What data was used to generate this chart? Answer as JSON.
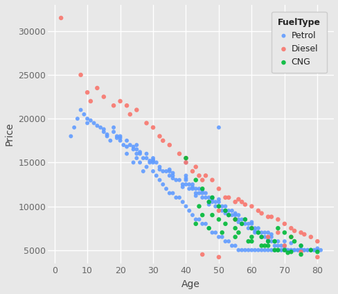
{
  "xlabel": "Age",
  "ylabel": "Price",
  "legend_title": "FuelType",
  "xlim": [
    -2,
    85
  ],
  "ylim": [
    3500,
    33000
  ],
  "xticks": [
    0,
    10,
    20,
    30,
    40,
    50,
    60,
    70,
    80
  ],
  "yticks": [
    5000,
    10000,
    15000,
    20000,
    25000,
    30000
  ],
  "background_color": "#E8E8E8",
  "grid_color": "#ffffff",
  "colors": {
    "Diesel": "#F8766D",
    "Petrol": "#619CFF",
    "CNG": "#00BA38"
  },
  "diesel_points": [
    [
      2,
      31500
    ],
    [
      8,
      25000
    ],
    [
      10,
      23000
    ],
    [
      11,
      22000
    ],
    [
      13,
      23500
    ],
    [
      15,
      22500
    ],
    [
      18,
      21500
    ],
    [
      20,
      22000
    ],
    [
      22,
      21500
    ],
    [
      23,
      20500
    ],
    [
      25,
      21000
    ],
    [
      28,
      19500
    ],
    [
      30,
      19000
    ],
    [
      32,
      18000
    ],
    [
      33,
      17500
    ],
    [
      35,
      17000
    ],
    [
      38,
      16000
    ],
    [
      40,
      15000
    ],
    [
      43,
      14500
    ],
    [
      44,
      13500
    ],
    [
      45,
      13000
    ],
    [
      46,
      13500
    ],
    [
      48,
      13000
    ],
    [
      50,
      12000
    ],
    [
      52,
      11000
    ],
    [
      53,
      11000
    ],
    [
      55,
      10500
    ],
    [
      56,
      10800
    ],
    [
      57,
      10500
    ],
    [
      58,
      10200
    ],
    [
      60,
      10000
    ],
    [
      62,
      9500
    ],
    [
      63,
      9200
    ],
    [
      65,
      8800
    ],
    [
      66,
      8800
    ],
    [
      68,
      8500
    ],
    [
      70,
      8000
    ],
    [
      72,
      7500
    ],
    [
      73,
      7200
    ],
    [
      75,
      7000
    ],
    [
      76,
      6800
    ],
    [
      78,
      6500
    ],
    [
      80,
      6000
    ],
    [
      40,
      15500
    ],
    [
      42,
      14000
    ],
    [
      50,
      9500
    ],
    [
      55,
      8500
    ],
    [
      60,
      7500
    ],
    [
      65,
      6500
    ],
    [
      70,
      5500
    ],
    [
      75,
      4800
    ],
    [
      80,
      4200
    ],
    [
      45,
      4500
    ],
    [
      50,
      4200
    ],
    [
      68,
      7000
    ],
    [
      72,
      6500
    ]
  ],
  "petrol_points": [
    [
      5,
      18000
    ],
    [
      6,
      19000
    ],
    [
      7,
      20000
    ],
    [
      8,
      21000
    ],
    [
      9,
      20500
    ],
    [
      10,
      20000
    ],
    [
      10,
      19500
    ],
    [
      11,
      19800
    ],
    [
      12,
      19500
    ],
    [
      13,
      19200
    ],
    [
      14,
      19000
    ],
    [
      15,
      18800
    ],
    [
      15,
      18500
    ],
    [
      16,
      18200
    ],
    [
      16,
      18000
    ],
    [
      17,
      17500
    ],
    [
      18,
      19000
    ],
    [
      18,
      18500
    ],
    [
      19,
      18000
    ],
    [
      19,
      17800
    ],
    [
      20,
      17800
    ],
    [
      20,
      17500
    ],
    [
      20,
      18000
    ],
    [
      21,
      17000
    ],
    [
      22,
      17500
    ],
    [
      22,
      16800
    ],
    [
      23,
      17000
    ],
    [
      24,
      16800
    ],
    [
      24,
      16500
    ],
    [
      25,
      16500
    ],
    [
      25,
      16000
    ],
    [
      25,
      17000
    ],
    [
      26,
      16200
    ],
    [
      26,
      16000
    ],
    [
      27,
      15500
    ],
    [
      28,
      15500
    ],
    [
      28,
      16000
    ],
    [
      29,
      15200
    ],
    [
      29,
      15000
    ],
    [
      30,
      15300
    ],
    [
      30,
      15200
    ],
    [
      30,
      15500
    ],
    [
      30,
      15000
    ],
    [
      31,
      15000
    ],
    [
      32,
      14500
    ],
    [
      32,
      14200
    ],
    [
      33,
      14000
    ],
    [
      34,
      14000
    ],
    [
      35,
      14200
    ],
    [
      35,
      13500
    ],
    [
      35,
      14000
    ],
    [
      36,
      13800
    ],
    [
      36,
      13500
    ],
    [
      36,
      13200
    ],
    [
      37,
      13000
    ],
    [
      38,
      13000
    ],
    [
      39,
      12500
    ],
    [
      39,
      12200
    ],
    [
      40,
      13200
    ],
    [
      40,
      12500
    ],
    [
      40,
      13000
    ],
    [
      40,
      13500
    ],
    [
      40,
      15000
    ],
    [
      41,
      12000
    ],
    [
      41,
      12500
    ],
    [
      42,
      12200
    ],
    [
      42,
      12000
    ],
    [
      42,
      12500
    ],
    [
      43,
      12000
    ],
    [
      43,
      11500
    ],
    [
      43,
      11200
    ],
    [
      44,
      11500
    ],
    [
      44,
      12000
    ],
    [
      45,
      11800
    ],
    [
      45,
      11000
    ],
    [
      45,
      11500
    ],
    [
      46,
      11000
    ],
    [
      46,
      11500
    ],
    [
      47,
      10200
    ],
    [
      47,
      10500
    ],
    [
      47,
      11000
    ],
    [
      48,
      10800
    ],
    [
      48,
      10500
    ],
    [
      48,
      11000
    ],
    [
      49,
      10000
    ],
    [
      49,
      10500
    ],
    [
      50,
      10800
    ],
    [
      50,
      10000
    ],
    [
      50,
      10500
    ],
    [
      50,
      19000
    ],
    [
      51,
      9500
    ],
    [
      51,
      10000
    ],
    [
      52,
      9500
    ],
    [
      52,
      9200
    ],
    [
      52,
      10000
    ],
    [
      53,
      9500
    ],
    [
      53,
      9000
    ],
    [
      54,
      9500
    ],
    [
      54,
      9000
    ],
    [
      55,
      9200
    ],
    [
      55,
      8500
    ],
    [
      55,
      9000
    ],
    [
      56,
      8500
    ],
    [
      56,
      8200
    ],
    [
      56,
      9000
    ],
    [
      57,
      8000
    ],
    [
      57,
      8500
    ],
    [
      58,
      8000
    ],
    [
      58,
      8500
    ],
    [
      59,
      8000
    ],
    [
      59,
      7500
    ],
    [
      60,
      8200
    ],
    [
      60,
      7500
    ],
    [
      60,
      8000
    ],
    [
      61,
      7200
    ],
    [
      61,
      7000
    ],
    [
      61,
      7500
    ],
    [
      62,
      7000
    ],
    [
      62,
      7500
    ],
    [
      63,
      6500
    ],
    [
      63,
      7000
    ],
    [
      64,
      6500
    ],
    [
      64,
      7000
    ],
    [
      65,
      7000
    ],
    [
      65,
      6200
    ],
    [
      65,
      6000
    ],
    [
      65,
      6500
    ],
    [
      66,
      6000
    ],
    [
      66,
      6500
    ],
    [
      66,
      6800
    ],
    [
      67,
      5500
    ],
    [
      67,
      6000
    ],
    [
      68,
      5500
    ],
    [
      68,
      6000
    ],
    [
      69,
      5000
    ],
    [
      69,
      5500
    ],
    [
      70,
      6000
    ],
    [
      70,
      5200
    ],
    [
      70,
      5000
    ],
    [
      70,
      5500
    ],
    [
      71,
      5000
    ],
    [
      72,
      5800
    ],
    [
      72,
      5000
    ],
    [
      73,
      5000
    ],
    [
      74,
      5000
    ],
    [
      75,
      5500
    ],
    [
      75,
      5100
    ],
    [
      75,
      5000
    ],
    [
      76,
      5000
    ],
    [
      77,
      5000
    ],
    [
      78,
      5000
    ],
    [
      79,
      5000
    ],
    [
      80,
      5200
    ],
    [
      80,
      5000
    ],
    [
      81,
      5000
    ],
    [
      40,
      10000
    ],
    [
      41,
      9500
    ],
    [
      42,
      9000
    ],
    [
      43,
      8500
    ],
    [
      44,
      8500
    ],
    [
      45,
      8000
    ],
    [
      46,
      8000
    ],
    [
      47,
      7500
    ],
    [
      48,
      7000
    ],
    [
      49,
      7000
    ],
    [
      50,
      6500
    ],
    [
      51,
      6500
    ],
    [
      52,
      6000
    ],
    [
      53,
      6000
    ],
    [
      54,
      5500
    ],
    [
      55,
      5500
    ],
    [
      56,
      5000
    ],
    [
      57,
      5000
    ],
    [
      58,
      5000
    ],
    [
      59,
      5000
    ],
    [
      60,
      5000
    ],
    [
      61,
      5000
    ],
    [
      62,
      5000
    ],
    [
      63,
      5000
    ],
    [
      64,
      5000
    ],
    [
      65,
      5000
    ],
    [
      66,
      5000
    ],
    [
      67,
      5000
    ],
    [
      68,
      5000
    ],
    [
      69,
      5000
    ],
    [
      70,
      5000
    ],
    [
      71,
      5000
    ],
    [
      72,
      5000
    ],
    [
      73,
      5000
    ],
    [
      74,
      5000
    ],
    [
      75,
      5000
    ],
    [
      76,
      5000
    ],
    [
      77,
      5000
    ],
    [
      78,
      5000
    ],
    [
      79,
      5000
    ],
    [
      38,
      11000
    ],
    [
      39,
      10500
    ],
    [
      36,
      11500
    ],
    [
      37,
      11000
    ],
    [
      34,
      12000
    ],
    [
      35,
      11500
    ],
    [
      33,
      12500
    ],
    [
      32,
      13000
    ],
    [
      31,
      13500
    ],
    [
      30,
      14000
    ],
    [
      28,
      14500
    ],
    [
      27,
      14000
    ],
    [
      26,
      15000
    ],
    [
      25,
      15500
    ],
    [
      24,
      15000
    ],
    [
      22,
      16000
    ]
  ],
  "cng_points": [
    [
      40,
      15500
    ],
    [
      43,
      13000
    ],
    [
      45,
      12000
    ],
    [
      47,
      10500
    ],
    [
      48,
      11000
    ],
    [
      50,
      10000
    ],
    [
      52,
      9500
    ],
    [
      53,
      9000
    ],
    [
      55,
      8500
    ],
    [
      57,
      8000
    ],
    [
      58,
      8500
    ],
    [
      60,
      7500
    ],
    [
      62,
      7000
    ],
    [
      63,
      6500
    ],
    [
      65,
      6000
    ],
    [
      67,
      6000
    ],
    [
      68,
      7500
    ],
    [
      70,
      7000
    ],
    [
      72,
      6500
    ],
    [
      73,
      6000
    ],
    [
      75,
      5500
    ],
    [
      78,
      5000
    ],
    [
      80,
      4800
    ],
    [
      45,
      9000
    ],
    [
      50,
      8500
    ],
    [
      55,
      7500
    ],
    [
      60,
      6500
    ],
    [
      65,
      5500
    ],
    [
      70,
      5000
    ],
    [
      75,
      4500
    ],
    [
      44,
      10000
    ],
    [
      48,
      9000
    ],
    [
      52,
      8000
    ],
    [
      56,
      7000
    ],
    [
      60,
      6000
    ],
    [
      64,
      5500
    ],
    [
      68,
      5000
    ],
    [
      72,
      4800
    ],
    [
      43,
      8000
    ],
    [
      47,
      7500
    ],
    [
      51,
      7000
    ],
    [
      55,
      6500
    ],
    [
      59,
      6000
    ],
    [
      63,
      5500
    ],
    [
      67,
      5000
    ],
    [
      71,
      4700
    ]
  ]
}
